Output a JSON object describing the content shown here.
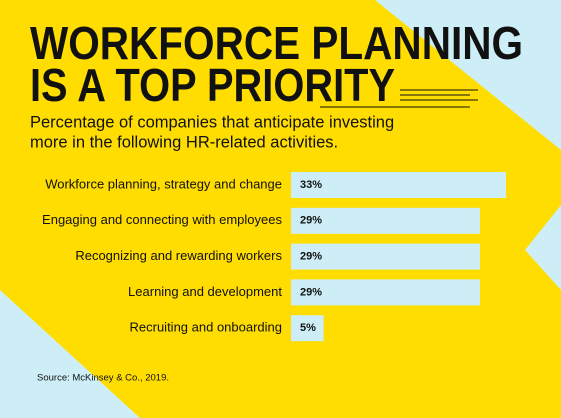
{
  "chart_data": {
    "type": "bar",
    "orientation": "horizontal",
    "title": [
      "WORKFORCE PLANNING",
      "IS A TOP PRIORITY"
    ],
    "subtitle": [
      "Percentage of companies that anticipate investing",
      "more in the following HR-related activities."
    ],
    "categories": [
      "Workforce planning, strategy and change",
      "Engaging and connecting with employees",
      "Recognizing and rewarding workers",
      "Learning and development",
      "Recruiting and onboarding"
    ],
    "values": [
      33,
      29,
      29,
      29,
      5
    ],
    "value_labels": [
      "33%",
      "29%",
      "29%",
      "29%",
      "5%"
    ],
    "color": "#cdeef6",
    "source": "Source: McKinsey & Co., 2019."
  }
}
